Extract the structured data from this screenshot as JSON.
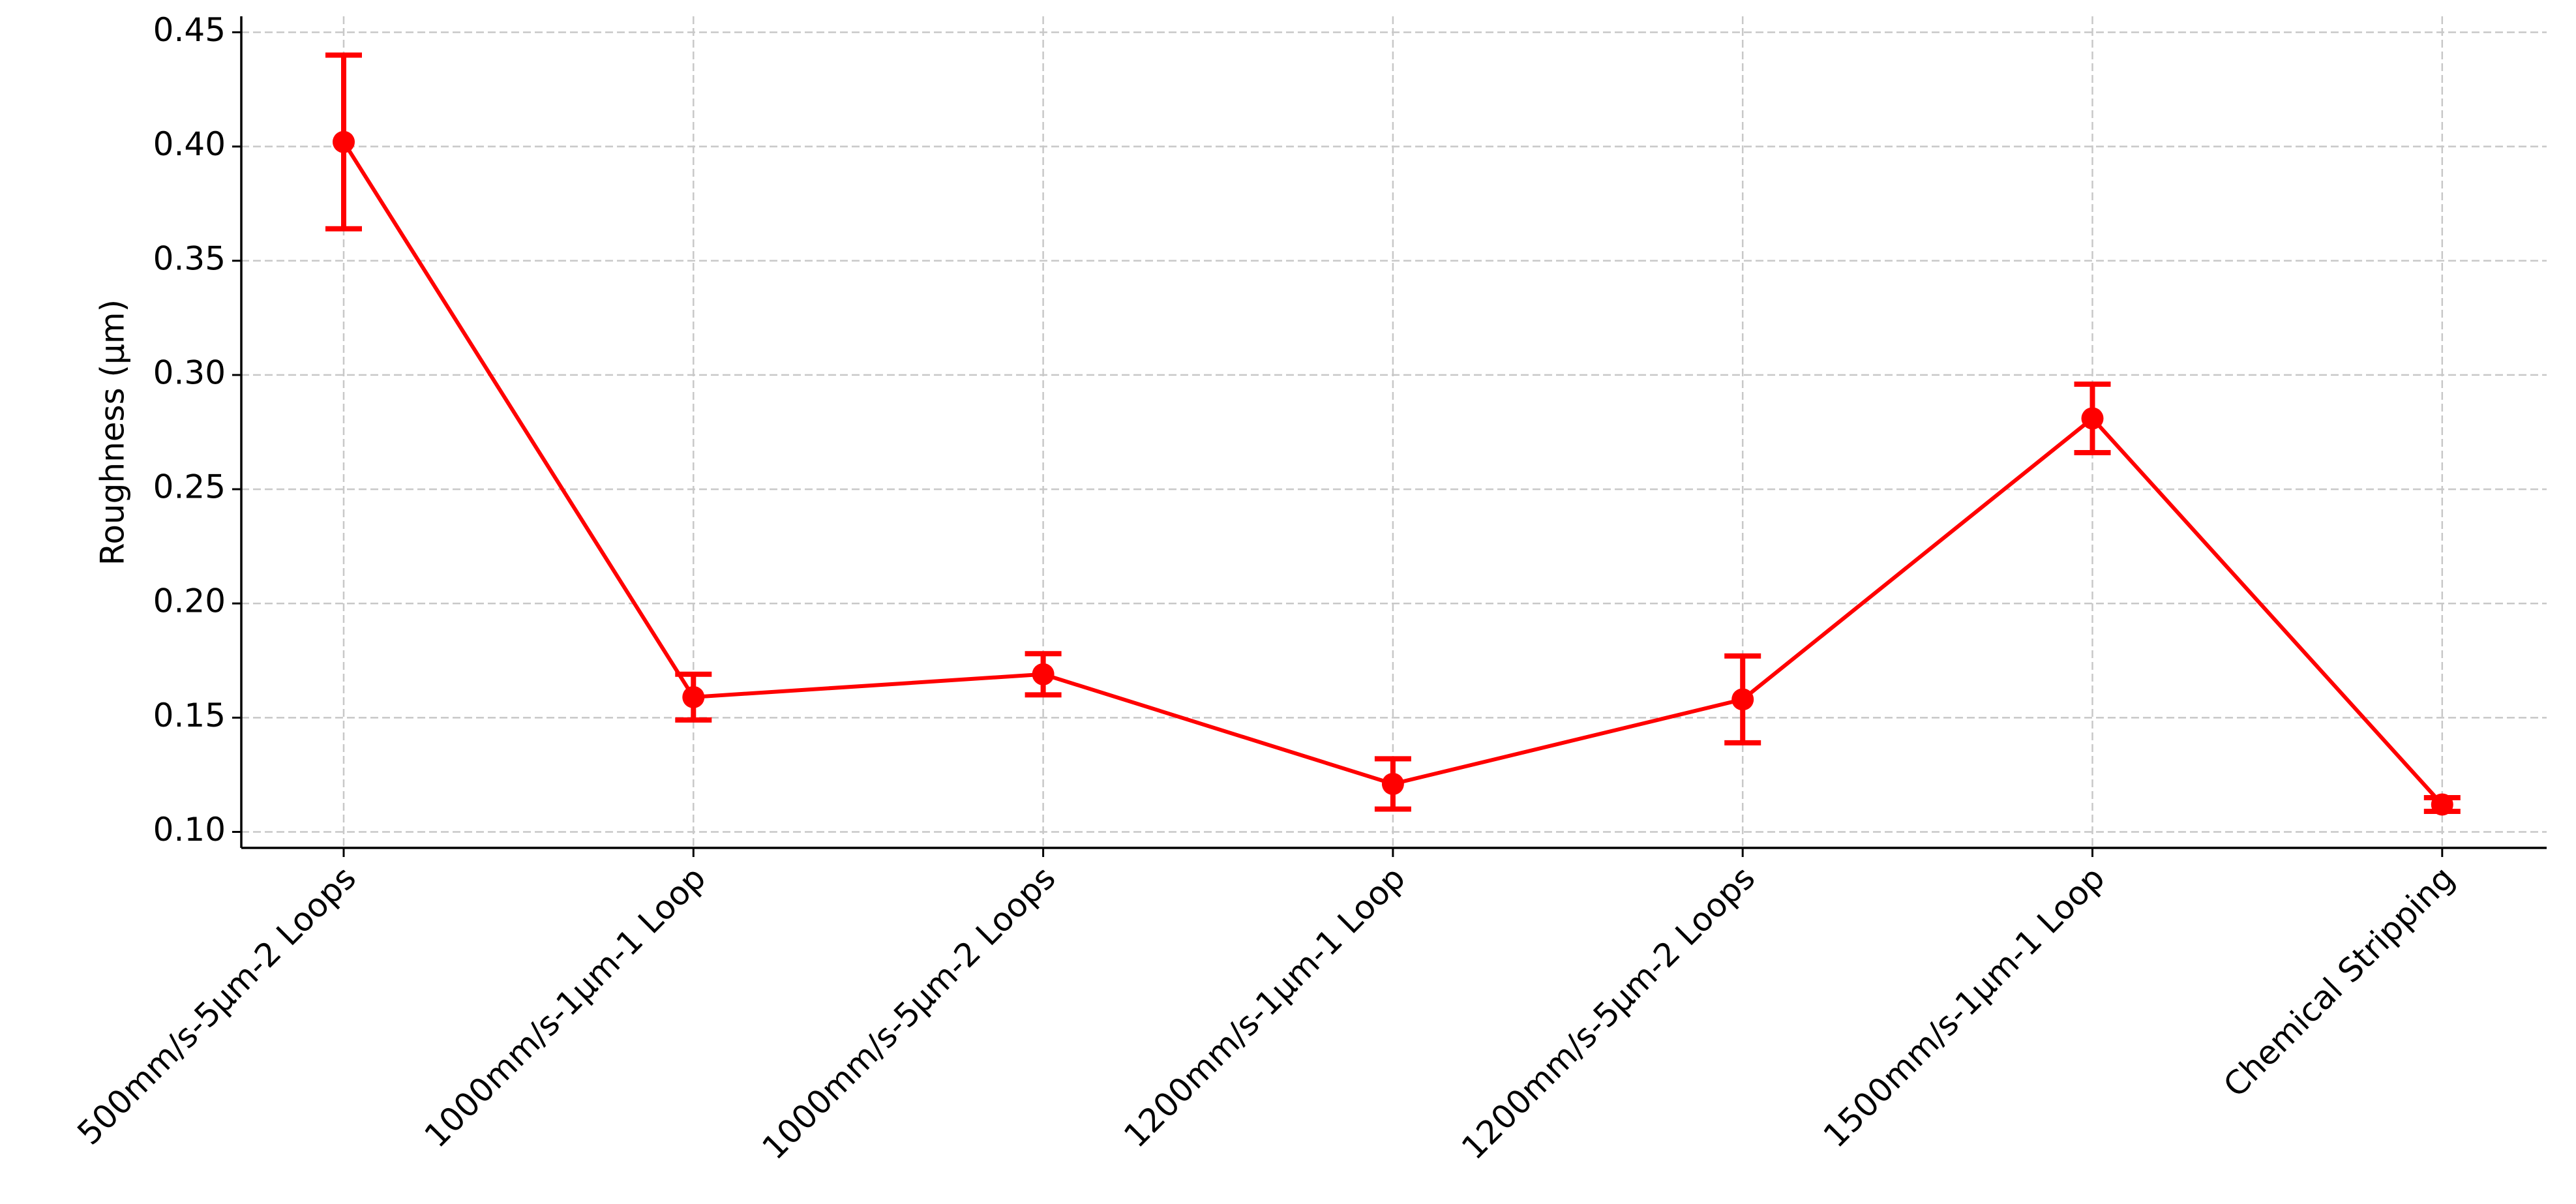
{
  "chart_data": {
    "type": "line",
    "ylabel": "Roughness (µm)",
    "categories": [
      "500mm/s-5µm-2 Loops",
      "1000mm/s-1µm-1 Loop",
      "1000mm/s-5µm-2 Loops",
      "1200mm/s-1µm-1 Loop",
      "1200mm/s-5µm-2 Loops",
      "1500mm/s-1µm-1 Loop",
      "Chemical Stripping"
    ],
    "values": [
      0.402,
      0.159,
      0.169,
      0.121,
      0.158,
      0.281,
      0.112
    ],
    "errors": [
      0.038,
      0.01,
      0.009,
      0.011,
      0.019,
      0.015,
      0.003
    ],
    "color": "#ff0000",
    "ylim": [
      0.093,
      0.457
    ],
    "yticks": [
      {
        "value": 0.1,
        "label": "0.10"
      },
      {
        "value": 0.15,
        "label": "0.15"
      },
      {
        "value": 0.2,
        "label": "0.20"
      },
      {
        "value": 0.25,
        "label": "0.25"
      },
      {
        "value": 0.3,
        "label": "0.30"
      },
      {
        "value": 0.35,
        "label": "0.35"
      },
      {
        "value": 0.4,
        "label": "0.40"
      },
      {
        "value": 0.45,
        "label": "0.45"
      }
    ],
    "grid": true
  }
}
